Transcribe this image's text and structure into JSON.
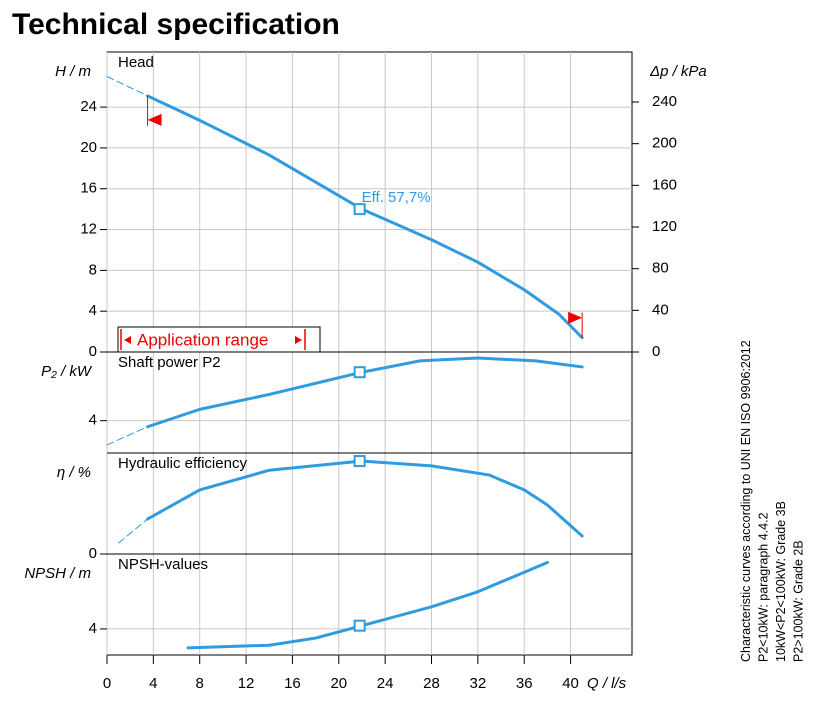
{
  "title": "Technical specification",
  "notes": [
    "Characteristic curves according to UNI EN ISO 9906:2012",
    "P2<10kW:  paragraph 4.4.2",
    "10kW<P2<100kW: Grade 3B",
    "P2>100kW: Grade 2B"
  ],
  "chart_data": [
    {
      "type": "line",
      "title": "Head",
      "ylabel": "H / m",
      "ylim": [
        0,
        29.4
      ],
      "yticks": [
        0,
        4,
        8,
        12,
        16,
        20,
        24
      ],
      "y2label": "Δp / kPa",
      "y2lim": [
        0,
        288
      ],
      "y2ticks": [
        0,
        40,
        80,
        120,
        160,
        200,
        240
      ],
      "series": [
        {
          "color": "#2f9be0",
          "style": "dashed",
          "x": [
            0,
            3.5
          ],
          "values": [
            27,
            25.1
          ]
        },
        {
          "color": "#2f9be0",
          "x": [
            3.5,
            8,
            14,
            22,
            28,
            32,
            36,
            39,
            41
          ],
          "values": [
            25.1,
            22.7,
            19.3,
            14.0,
            11.0,
            8.8,
            6.1,
            3.7,
            1.4
          ]
        }
      ],
      "operating_point": {
        "x": 21.8,
        "value": 14.0
      },
      "annotation": {
        "label": "Eff.  57,7%",
        "value": 57.7
      },
      "application_range": "Application range"
    },
    {
      "type": "line",
      "title": "Shaft power P2",
      "ylabel": "P₂ / kW",
      "ylim": [
        3.2,
        5.7
      ],
      "yticks": [
        4
      ],
      "series": [
        {
          "color": "#2f9be0",
          "style": "dashed",
          "x": [
            0,
            3.5
          ],
          "values": [
            3.4,
            3.85
          ]
        },
        {
          "color": "#2f9be0",
          "x": [
            3.5,
            8,
            14,
            22,
            27,
            32,
            37,
            41
          ],
          "values": [
            3.85,
            4.28,
            4.65,
            5.2,
            5.48,
            5.55,
            5.48,
            5.33
          ]
        }
      ],
      "operating_point": {
        "x": 21.8,
        "value": 5.2
      }
    },
    {
      "type": "line",
      "title": "Hydraulic efficiency",
      "ylabel": "η / %",
      "ylim": [
        0,
        62.7
      ],
      "yticks": [
        0
      ],
      "series": [
        {
          "color": "#2f9be0",
          "style": "dashed",
          "x": [
            1,
            3.5
          ],
          "values": [
            6.8,
            21.7
          ]
        },
        {
          "color": "#2f9be0",
          "x": [
            3.5,
            8,
            14,
            22,
            28,
            33,
            36,
            38,
            41
          ],
          "values": [
            21.7,
            39.8,
            52,
            57.7,
            54.7,
            49,
            39.8,
            30.4,
            11.2
          ]
        }
      ],
      "operating_point": {
        "x": 21.8,
        "value": 57.7
      }
    },
    {
      "type": "line",
      "title": "NPSH-values",
      "ylabel": "NPSH / m",
      "ylim": [
        0,
        15.5
      ],
      "yticks": [
        4
      ],
      "xlabel": "Q / l/s",
      "xlim": [
        0,
        45.3
      ],
      "xticks": [
        0,
        4,
        8,
        12,
        16,
        20,
        24,
        28,
        32,
        36,
        40
      ],
      "series": [
        {
          "color": "#2f9be0",
          "x": [
            7,
            14,
            18,
            22,
            28,
            32,
            38
          ],
          "values": [
            1.1,
            1.5,
            2.6,
            4.5,
            7.4,
            9.7,
            14.2
          ]
        }
      ],
      "operating_point": {
        "x": 21.8,
        "value": 4.5
      }
    }
  ]
}
